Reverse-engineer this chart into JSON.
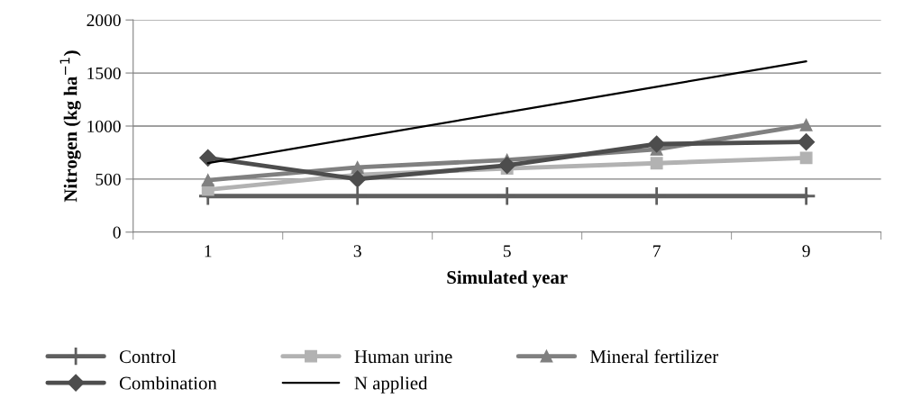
{
  "chart_data": {
    "type": "line",
    "xlabel": "Simulated year",
    "ylabel": "Nitrogen (kg ha$^{−1}$)",
    "categories": [
      "1",
      "3",
      "5",
      "7",
      "9"
    ],
    "ylim": [
      0,
      2000
    ],
    "yticks": [
      0,
      500,
      1000,
      1500,
      2000
    ],
    "grid": "y",
    "legend": "bottom",
    "series": [
      {
        "name": "Control",
        "color": "#5f5f5f",
        "marker": "cross",
        "values": [
          340,
          340,
          340,
          340,
          340
        ]
      },
      {
        "name": "Human urine",
        "color": "#b2b2b2",
        "marker": "square",
        "values": [
          400,
          540,
          600,
          650,
          700
        ]
      },
      {
        "name": "Mineral fertilizer",
        "color": "#808080",
        "marker": "triangle",
        "values": [
          490,
          610,
          680,
          780,
          1010
        ]
      },
      {
        "name": "Combination",
        "color": "#4d4d4d",
        "marker": "diamond",
        "values": [
          700,
          500,
          630,
          830,
          850
        ]
      },
      {
        "name": "N applied",
        "color": "#000000",
        "marker": "none",
        "values": [
          650,
          890,
          1130,
          1370,
          1610
        ]
      }
    ]
  }
}
